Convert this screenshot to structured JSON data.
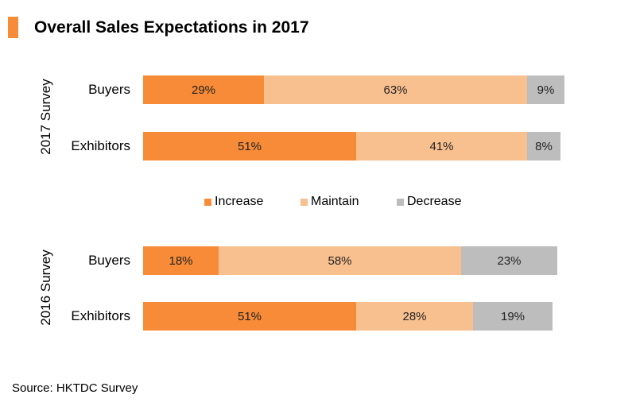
{
  "title": "Overall Sales Expectations in 2017",
  "source": "Source: HKTDC Survey",
  "colors": {
    "accent": "#f78b37",
    "Increase": "#f78b37",
    "Maintain": "#f9c08f",
    "Decrease": "#bdbdbd"
  },
  "chart_data": {
    "type": "bar",
    "orientation": "horizontal",
    "stacked": true,
    "title": "Overall Sales Expectations in 2017",
    "series_names": [
      "Increase",
      "Maintain",
      "Decrease"
    ],
    "legend_placement": "middle",
    "groups": [
      {
        "name": "2017 Survey",
        "rows": [
          {
            "category": "Buyers",
            "values": [
              29,
              63,
              9
            ],
            "labels": [
              "29%",
              "63%",
              "9%"
            ]
          },
          {
            "category": "Exhibitors",
            "values": [
              51,
              41,
              8
            ],
            "labels": [
              "51%",
              "41%",
              "8%"
            ]
          }
        ]
      },
      {
        "name": "2016 Survey",
        "rows": [
          {
            "category": "Buyers",
            "values": [
              18,
              58,
              23
            ],
            "labels": [
              "18%",
              "58%",
              "23%"
            ]
          },
          {
            "category": "Exhibitors",
            "values": [
              51,
              28,
              19
            ],
            "labels": [
              "51%",
              "28%",
              "19%"
            ]
          }
        ]
      }
    ]
  }
}
